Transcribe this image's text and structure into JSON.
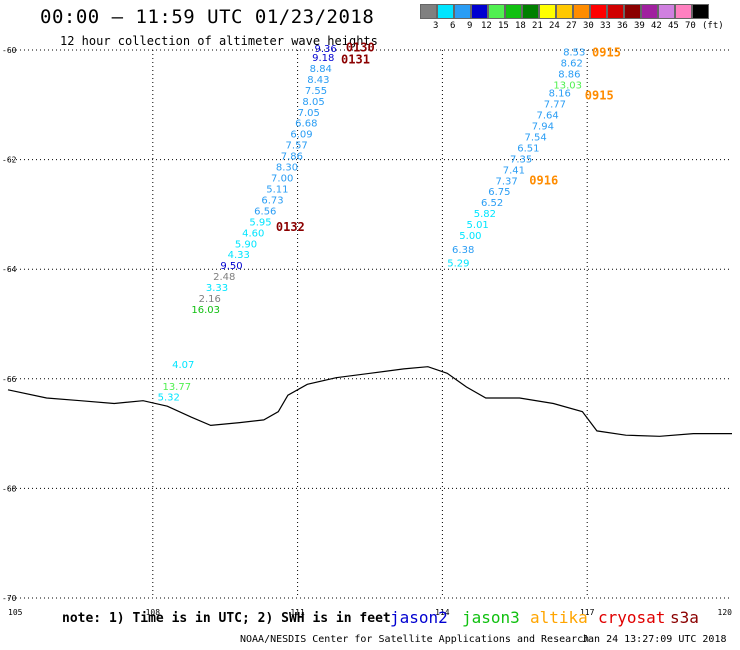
{
  "header": {
    "title": "00:00 – 11:59 UTC 01/23/2018",
    "subtitle": "12 hour collection of altimeter wave heights"
  },
  "legend": {
    "unit": "(ft)",
    "colors": [
      "#808080",
      "#00e5ff",
      "#2a9df4",
      "#0000d0",
      "#50f050",
      "#10c010",
      "#008000",
      "#ffff00",
      "#ffc800",
      "#ff8c00",
      "#ff0000",
      "#d00000",
      "#8b0000",
      "#a0209f",
      "#d080e0",
      "#ff80c0",
      "#000000"
    ],
    "labels": [
      "3",
      "6",
      "9",
      "12",
      "15",
      "18",
      "21",
      "24",
      "27",
      "30",
      "33",
      "36",
      "39",
      "42",
      "45",
      "70"
    ]
  },
  "chart_data": {
    "type": "map",
    "x_ticks": [
      "105",
      "108",
      "111",
      "114",
      "117",
      "120"
    ],
    "y_ticks": [
      "-60",
      "-62",
      "-64",
      "-66",
      "-68",
      "-70"
    ],
    "xlim": [
      105,
      120
    ],
    "ylim": [
      -70,
      -60
    ],
    "grid": true,
    "coastline": [
      [
        105,
        -66.2
      ],
      [
        105.8,
        -66.35
      ],
      [
        106.5,
        -66.4
      ],
      [
        107.2,
        -66.45
      ],
      [
        107.8,
        -66.4
      ],
      [
        108.3,
        -66.5
      ],
      [
        108.8,
        -66.7
      ],
      [
        109.2,
        -66.85
      ],
      [
        109.8,
        -66.8
      ],
      [
        110.3,
        -66.75
      ],
      [
        110.6,
        -66.6
      ],
      [
        110.8,
        -66.3
      ],
      [
        111.2,
        -66.1
      ],
      [
        111.8,
        -65.98
      ],
      [
        112.5,
        -65.9
      ],
      [
        113.2,
        -65.82
      ],
      [
        113.7,
        -65.78
      ],
      [
        114.1,
        -65.9
      ],
      [
        114.5,
        -66.15
      ],
      [
        114.9,
        -66.35
      ],
      [
        115.6,
        -66.35
      ],
      [
        116.3,
        -66.45
      ],
      [
        116.9,
        -66.6
      ],
      [
        117.2,
        -66.95
      ],
      [
        117.8,
        -67.03
      ],
      [
        118.5,
        -67.05
      ],
      [
        119.2,
        -67.0
      ],
      [
        120,
        -67.0
      ]
    ],
    "points": [
      {
        "text": "9.36",
        "lon": 111.35,
        "lat": -60.04,
        "color": "#0000d0"
      },
      {
        "text": "9.18",
        "lon": 111.3,
        "lat": -60.2,
        "color": "#0000d0"
      },
      {
        "text": "8.84",
        "lon": 111.25,
        "lat": -60.4,
        "color": "#2a9df4"
      },
      {
        "text": "8.43",
        "lon": 111.2,
        "lat": -60.6,
        "color": "#2a9df4"
      },
      {
        "text": "7.55",
        "lon": 111.15,
        "lat": -60.8,
        "color": "#2a9df4"
      },
      {
        "text": "8.05",
        "lon": 111.1,
        "lat": -61.0,
        "color": "#2a9df4"
      },
      {
        "text": "7.05",
        "lon": 111.0,
        "lat": -61.2,
        "color": "#2a9df4"
      },
      {
        "text": "6.68",
        "lon": 110.95,
        "lat": -61.4,
        "color": "#2a9df4"
      },
      {
        "text": "6.09",
        "lon": 110.85,
        "lat": -61.6,
        "color": "#2a9df4"
      },
      {
        "text": "7.57",
        "lon": 110.75,
        "lat": -61.8,
        "color": "#2a9df4"
      },
      {
        "text": "7.86",
        "lon": 110.65,
        "lat": -62.0,
        "color": "#2a9df4"
      },
      {
        "text": "8.30",
        "lon": 110.55,
        "lat": -62.2,
        "color": "#2a9df4"
      },
      {
        "text": "7.00",
        "lon": 110.45,
        "lat": -62.4,
        "color": "#2a9df4"
      },
      {
        "text": "5.11",
        "lon": 110.35,
        "lat": -62.6,
        "color": "#2a9df4"
      },
      {
        "text": "6.73",
        "lon": 110.25,
        "lat": -62.8,
        "color": "#2a9df4"
      },
      {
        "text": "6.56",
        "lon": 110.1,
        "lat": -63.0,
        "color": "#2a9df4"
      },
      {
        "text": "5.95",
        "lon": 110.0,
        "lat": -63.2,
        "color": "#00e5ff"
      },
      {
        "text": "4.60",
        "lon": 109.85,
        "lat": -63.4,
        "color": "#00e5ff"
      },
      {
        "text": "5.90",
        "lon": 109.7,
        "lat": -63.6,
        "color": "#00e5ff"
      },
      {
        "text": "4.33",
        "lon": 109.55,
        "lat": -63.8,
        "color": "#00e5ff"
      },
      {
        "text": "9.50",
        "lon": 109.4,
        "lat": -64.0,
        "color": "#0000d0"
      },
      {
        "text": "2.48",
        "lon": 109.25,
        "lat": -64.2,
        "color": "#808080"
      },
      {
        "text": "3.33",
        "lon": 109.1,
        "lat": -64.4,
        "color": "#00e5ff"
      },
      {
        "text": "2.16",
        "lon": 108.95,
        "lat": -64.6,
        "color": "#808080"
      },
      {
        "text": "16.03",
        "lon": 108.8,
        "lat": -64.8,
        "color": "#10c010"
      },
      {
        "text": "4.07",
        "lon": 108.4,
        "lat": -65.8,
        "color": "#00e5ff"
      },
      {
        "text": "13.77",
        "lon": 108.2,
        "lat": -66.2,
        "color": "#50f050"
      },
      {
        "text": "5.32",
        "lon": 108.1,
        "lat": -66.4,
        "color": "#00e5ff"
      },
      {
        "text": "8.53",
        "lon": 116.5,
        "lat": -60.1,
        "color": "#2a9df4"
      },
      {
        "text": "8.62",
        "lon": 116.45,
        "lat": -60.3,
        "color": "#2a9df4"
      },
      {
        "text": "8.86",
        "lon": 116.4,
        "lat": -60.5,
        "color": "#2a9df4"
      },
      {
        "text": "13.03",
        "lon": 116.3,
        "lat": -60.7,
        "color": "#50f050"
      },
      {
        "text": "8.16",
        "lon": 116.2,
        "lat": -60.85,
        "color": "#2a9df4"
      },
      {
        "text": "7.77",
        "lon": 116.1,
        "lat": -61.05,
        "color": "#2a9df4"
      },
      {
        "text": "7.64",
        "lon": 115.95,
        "lat": -61.25,
        "color": "#2a9df4"
      },
      {
        "text": "7.94",
        "lon": 115.85,
        "lat": -61.45,
        "color": "#2a9df4"
      },
      {
        "text": "7.54",
        "lon": 115.7,
        "lat": -61.65,
        "color": "#2a9df4"
      },
      {
        "text": "6.51",
        "lon": 115.55,
        "lat": -61.85,
        "color": "#2a9df4"
      },
      {
        "text": "7.35",
        "lon": 115.4,
        "lat": -62.05,
        "color": "#2a9df4"
      },
      {
        "text": "7.41",
        "lon": 115.25,
        "lat": -62.25,
        "color": "#2a9df4"
      },
      {
        "text": "7.37",
        "lon": 115.1,
        "lat": -62.45,
        "color": "#2a9df4"
      },
      {
        "text": "6.75",
        "lon": 114.95,
        "lat": -62.65,
        "color": "#2a9df4"
      },
      {
        "text": "6.52",
        "lon": 114.8,
        "lat": -62.85,
        "color": "#2a9df4"
      },
      {
        "text": "5.82",
        "lon": 114.65,
        "lat": -63.05,
        "color": "#00e5ff"
      },
      {
        "text": "5.01",
        "lon": 114.5,
        "lat": -63.25,
        "color": "#00e5ff"
      },
      {
        "text": "5.00",
        "lon": 114.35,
        "lat": -63.45,
        "color": "#00e5ff"
      },
      {
        "text": "6.38",
        "lon": 114.2,
        "lat": -63.7,
        "color": "#2a9df4"
      },
      {
        "text": "5.29",
        "lon": 114.1,
        "lat": -63.95,
        "color": "#00e5ff"
      }
    ],
    "time_labels": [
      {
        "text": "0130",
        "lon": 112.0,
        "lat": -60.03,
        "color": "#8b0000"
      },
      {
        "text": "0131",
        "lon": 111.9,
        "lat": -60.25,
        "color": "#8b0000"
      },
      {
        "text": "0132",
        "lon": 110.55,
        "lat": -63.3,
        "color": "#8b0000"
      },
      {
        "text": "0915",
        "lon": 117.1,
        "lat": -60.12,
        "color": "#ff8c00"
      },
      {
        "text": "0915",
        "lon": 116.95,
        "lat": -60.9,
        "color": "#ff8c00"
      },
      {
        "text": "0916",
        "lon": 115.8,
        "lat": -62.45,
        "color": "#ff8c00"
      }
    ]
  },
  "footer": {
    "note": "note: 1) Time is in UTC; 2) SWH is in feet",
    "satellites": [
      {
        "name": "jason2",
        "color": "#0000d0"
      },
      {
        "name": "jason3",
        "color": "#10c010"
      },
      {
        "name": "altika",
        "color": "#ffa500"
      },
      {
        "name": "cryosat",
        "color": "#e00000"
      },
      {
        "name": "s3a",
        "color": "#8b0000"
      }
    ],
    "credit": "NOAA/NESDIS Center for Satellite Applications and Research",
    "timestamp": "Jan 24 13:27:09 UTC 2018"
  }
}
